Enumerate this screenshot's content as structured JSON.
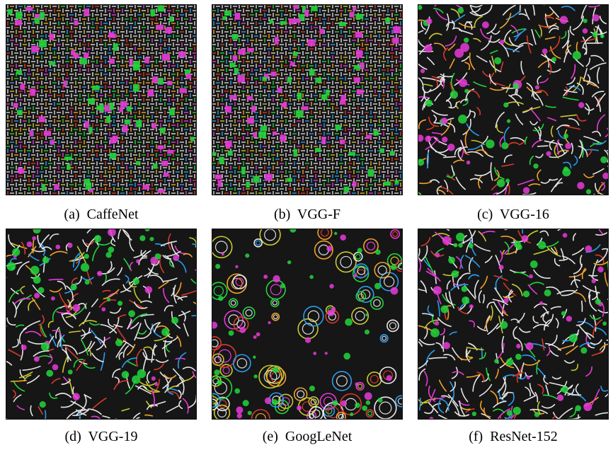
{
  "panels": [
    {
      "label": "(a)  CaffeNet",
      "texture": "grid-weave"
    },
    {
      "label": "(b)  VGG-F",
      "texture": "grid-weave"
    },
    {
      "label": "(c)  VGG-16",
      "texture": "feather-swirl"
    },
    {
      "label": "(d)  VGG-19",
      "texture": "feather-swirl"
    },
    {
      "label": "(e)  GoogLeNet",
      "texture": "circular-swirl"
    },
    {
      "label": "(f)  ResNet-152",
      "texture": "feather-swirl"
    }
  ],
  "palette": [
    "#e83ad8",
    "#22d63c",
    "#2a9df0",
    "#f2a22a",
    "#e8e8e8",
    "#d83a2a",
    "#c8c830"
  ]
}
